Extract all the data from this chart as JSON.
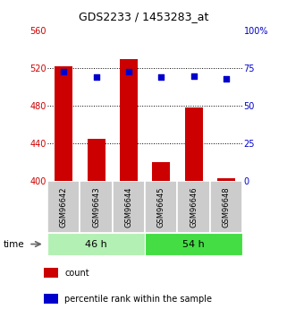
{
  "title": "GDS2233 / 1453283_at",
  "samples": [
    "GSM96642",
    "GSM96643",
    "GSM96644",
    "GSM96645",
    "GSM96646",
    "GSM96648"
  ],
  "counts": [
    522,
    445,
    530,
    420,
    478,
    403
  ],
  "percentiles": [
    73,
    69,
    73,
    69,
    70,
    68
  ],
  "ylim_left": [
    400,
    560
  ],
  "ylim_right": [
    0,
    100
  ],
  "yticks_left": [
    400,
    440,
    480,
    520,
    560
  ],
  "yticks_right": [
    0,
    25,
    50,
    75,
    100
  ],
  "ytick_labels_right": [
    "0",
    "25",
    "50",
    "75",
    "100%"
  ],
  "bar_color": "#cc0000",
  "dot_color": "#0000cc",
  "bar_width": 0.55,
  "group_labels": [
    "46 h",
    "54 h"
  ],
  "group_colors_light": "#b3f0b3",
  "group_colors_dark": "#44dd44",
  "label_bg_color": "#cccccc",
  "legend_bar_label": "count",
  "legend_dot_label": "percentile rank within the sample",
  "time_label": "time",
  "left_color": "#cc0000",
  "right_color": "#0000cc",
  "title_fontsize": 9,
  "tick_fontsize": 7,
  "sample_fontsize": 6,
  "group_fontsize": 8,
  "legend_fontsize": 7
}
